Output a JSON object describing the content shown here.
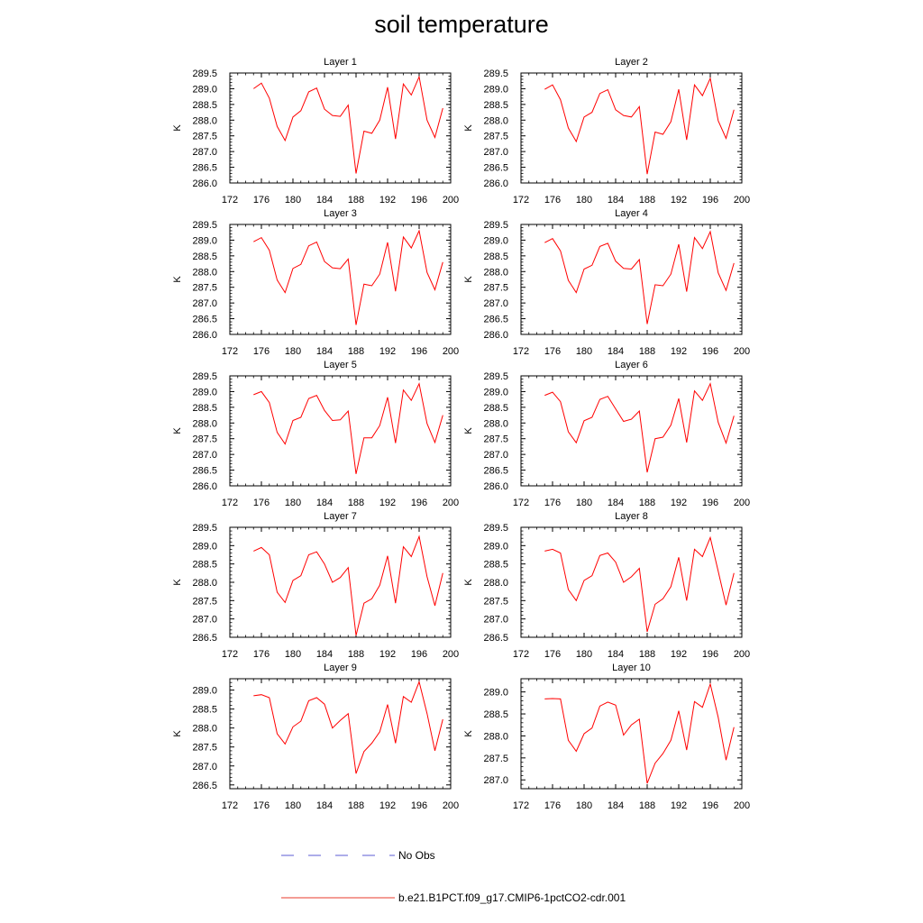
{
  "title": "soil temperature",
  "legend": {
    "items": [
      {
        "label": "No Obs",
        "color": "#5b5bd6",
        "style": "dashed"
      },
      {
        "label": "b.e21.B1PCT.f09_g17.CMIP6-1pctCO2-cdr.001",
        "color": "#e8382b",
        "style": "solid"
      }
    ]
  },
  "chart_data": [
    {
      "type": "line",
      "title": "Layer 1",
      "ylabel": "K",
      "xlim": [
        172,
        200
      ],
      "ylim": [
        286.0,
        289.5
      ],
      "yticks": [
        286.0,
        286.5,
        287.0,
        287.5,
        288.0,
        288.5,
        289.0,
        289.5
      ],
      "xticks": [
        172,
        176,
        180,
        184,
        188,
        192,
        196,
        200
      ],
      "line_color": "#ff0000",
      "x": [
        175,
        176,
        177,
        178,
        179,
        180,
        181,
        182,
        183,
        184,
        185,
        186,
        187,
        188,
        189,
        190,
        191,
        192,
        193,
        194,
        195,
        196,
        197,
        198,
        199
      ],
      "series": [
        {
          "values": [
            289.0,
            289.18,
            288.7,
            287.8,
            287.35,
            288.1,
            288.3,
            288.9,
            289.02,
            288.35,
            288.15,
            288.12,
            288.48,
            286.3,
            287.65,
            287.58,
            288.0,
            289.05,
            287.4,
            289.15,
            288.8,
            289.38,
            288.0,
            287.45,
            288.38
          ]
        }
      ]
    },
    {
      "type": "line",
      "title": "Layer 2",
      "ylabel": "K",
      "xlim": [
        172,
        200
      ],
      "ylim": [
        286.0,
        289.5
      ],
      "yticks": [
        286.0,
        286.5,
        287.0,
        287.5,
        288.0,
        288.5,
        289.0,
        289.5
      ],
      "xticks": [
        172,
        176,
        180,
        184,
        188,
        192,
        196,
        200
      ],
      "line_color": "#ff0000",
      "x": [
        175,
        176,
        177,
        178,
        179,
        180,
        181,
        182,
        183,
        184,
        185,
        186,
        187,
        188,
        189,
        190,
        191,
        192,
        193,
        194,
        195,
        196,
        197,
        198,
        199
      ],
      "series": [
        {
          "values": [
            288.98,
            289.12,
            288.65,
            287.75,
            287.32,
            288.1,
            288.25,
            288.85,
            288.97,
            288.33,
            288.15,
            288.1,
            288.43,
            286.28,
            287.62,
            287.55,
            287.95,
            288.98,
            287.37,
            289.12,
            288.78,
            289.33,
            287.98,
            287.42,
            288.33
          ]
        }
      ]
    },
    {
      "type": "line",
      "title": "Layer 3",
      "ylabel": "K",
      "xlim": [
        172,
        200
      ],
      "ylim": [
        286.0,
        289.5
      ],
      "yticks": [
        286.0,
        286.5,
        287.0,
        287.5,
        288.0,
        288.5,
        289.0,
        289.5
      ],
      "xticks": [
        172,
        176,
        180,
        184,
        188,
        192,
        196,
        200
      ],
      "line_color": "#ff0000",
      "x": [
        175,
        176,
        177,
        178,
        179,
        180,
        181,
        182,
        183,
        184,
        185,
        186,
        187,
        188,
        189,
        190,
        191,
        192,
        193,
        194,
        195,
        196,
        197,
        198,
        199
      ],
      "series": [
        {
          "values": [
            288.95,
            289.08,
            288.68,
            287.73,
            287.33,
            288.1,
            288.23,
            288.82,
            288.94,
            288.32,
            288.12,
            288.09,
            288.4,
            286.3,
            287.6,
            287.55,
            287.92,
            288.93,
            287.37,
            289.1,
            288.75,
            289.3,
            287.97,
            287.42,
            288.3
          ]
        }
      ]
    },
    {
      "type": "line",
      "title": "Layer 4",
      "ylabel": "K",
      "xlim": [
        172,
        200
      ],
      "ylim": [
        286.0,
        289.5
      ],
      "yticks": [
        286.0,
        286.5,
        287.0,
        287.5,
        288.0,
        288.5,
        289.0,
        289.5
      ],
      "xticks": [
        172,
        176,
        180,
        184,
        188,
        192,
        196,
        200
      ],
      "line_color": "#ff0000",
      "x": [
        175,
        176,
        177,
        178,
        179,
        180,
        181,
        182,
        183,
        184,
        185,
        186,
        187,
        188,
        189,
        190,
        191,
        192,
        193,
        194,
        195,
        196,
        197,
        198,
        199
      ],
      "series": [
        {
          "values": [
            288.92,
            289.05,
            288.66,
            287.72,
            287.33,
            288.08,
            288.2,
            288.8,
            288.9,
            288.33,
            288.1,
            288.08,
            288.38,
            286.33,
            287.58,
            287.55,
            287.92,
            288.87,
            287.36,
            289.08,
            288.73,
            289.27,
            287.96,
            287.4,
            288.27
          ]
        }
      ]
    },
    {
      "type": "line",
      "title": "Layer 5",
      "ylabel": "K",
      "xlim": [
        172,
        200
      ],
      "ylim": [
        286.0,
        289.5
      ],
      "yticks": [
        286.0,
        286.5,
        287.0,
        287.5,
        288.0,
        288.5,
        289.0,
        289.5
      ],
      "xticks": [
        172,
        176,
        180,
        184,
        188,
        192,
        196,
        200
      ],
      "line_color": "#ff0000",
      "x": [
        175,
        176,
        177,
        178,
        179,
        180,
        181,
        182,
        183,
        184,
        185,
        186,
        187,
        188,
        189,
        190,
        191,
        192,
        193,
        194,
        195,
        196,
        197,
        198,
        199
      ],
      "series": [
        {
          "values": [
            288.9,
            289.0,
            288.65,
            287.7,
            287.33,
            288.08,
            288.18,
            288.78,
            288.88,
            288.4,
            288.08,
            288.1,
            288.38,
            286.38,
            287.53,
            287.53,
            287.92,
            288.82,
            287.36,
            289.05,
            288.72,
            289.25,
            287.98,
            287.38,
            288.25
          ]
        }
      ]
    },
    {
      "type": "line",
      "title": "Layer 6",
      "ylabel": "K",
      "xlim": [
        172,
        200
      ],
      "ylim": [
        286.0,
        289.5
      ],
      "yticks": [
        286.0,
        286.5,
        287.0,
        287.5,
        288.0,
        288.5,
        289.0,
        289.5
      ],
      "xticks": [
        172,
        176,
        180,
        184,
        188,
        192,
        196,
        200
      ],
      "line_color": "#ff0000",
      "x": [
        175,
        176,
        177,
        178,
        179,
        180,
        181,
        182,
        183,
        184,
        185,
        186,
        187,
        188,
        189,
        190,
        191,
        192,
        193,
        194,
        195,
        196,
        197,
        198,
        199
      ],
      "series": [
        {
          "values": [
            288.88,
            288.98,
            288.68,
            287.72,
            287.37,
            288.07,
            288.18,
            288.75,
            288.85,
            288.45,
            288.05,
            288.12,
            288.38,
            286.43,
            287.5,
            287.55,
            287.93,
            288.78,
            287.38,
            289.02,
            288.72,
            289.25,
            288.02,
            287.36,
            288.23
          ]
        }
      ]
    },
    {
      "type": "line",
      "title": "Layer 7",
      "ylabel": "K",
      "xlim": [
        172,
        200
      ],
      "ylim": [
        286.5,
        289.5
      ],
      "yticks": [
        286.5,
        287.0,
        287.5,
        288.0,
        288.5,
        289.0,
        289.5
      ],
      "xticks": [
        172,
        176,
        180,
        184,
        188,
        192,
        196,
        200
      ],
      "line_color": "#ff0000",
      "x": [
        175,
        176,
        177,
        178,
        179,
        180,
        181,
        182,
        183,
        184,
        185,
        186,
        187,
        188,
        189,
        190,
        191,
        192,
        193,
        194,
        195,
        196,
        197,
        198,
        199
      ],
      "series": [
        {
          "values": [
            288.85,
            288.95,
            288.75,
            287.73,
            287.45,
            288.05,
            288.18,
            288.75,
            288.83,
            288.5,
            288.0,
            288.13,
            288.4,
            286.55,
            287.43,
            287.55,
            287.92,
            288.72,
            287.43,
            288.97,
            288.7,
            289.25,
            288.15,
            287.36,
            288.25
          ]
        }
      ]
    },
    {
      "type": "line",
      "title": "Layer 8",
      "ylabel": "K",
      "xlim": [
        172,
        200
      ],
      "ylim": [
        286.5,
        289.5
      ],
      "yticks": [
        286.5,
        287.0,
        287.5,
        288.0,
        288.5,
        289.0,
        289.5
      ],
      "xticks": [
        172,
        176,
        180,
        184,
        188,
        192,
        196,
        200
      ],
      "line_color": "#ff0000",
      "x": [
        175,
        176,
        177,
        178,
        179,
        180,
        181,
        182,
        183,
        184,
        185,
        186,
        187,
        188,
        189,
        190,
        191,
        192,
        193,
        194,
        195,
        196,
        197,
        198,
        199
      ],
      "series": [
        {
          "values": [
            288.85,
            288.9,
            288.8,
            287.8,
            287.5,
            288.05,
            288.18,
            288.73,
            288.8,
            288.55,
            288.0,
            288.15,
            288.38,
            286.65,
            287.4,
            287.55,
            287.88,
            288.68,
            287.5,
            288.9,
            288.7,
            289.22,
            288.3,
            287.38,
            288.25
          ]
        }
      ]
    },
    {
      "type": "line",
      "title": "Layer 9",
      "ylabel": "K",
      "xlim": [
        172,
        200
      ],
      "ylim": [
        286.4,
        289.3
      ],
      "yticks": [
        286.5,
        287.0,
        287.5,
        288.0,
        288.5,
        289.0
      ],
      "xticks": [
        172,
        176,
        180,
        184,
        188,
        192,
        196,
        200
      ],
      "line_color": "#ff0000",
      "x": [
        175,
        176,
        177,
        178,
        179,
        180,
        181,
        182,
        183,
        184,
        185,
        186,
        187,
        188,
        189,
        190,
        191,
        192,
        193,
        194,
        195,
        196,
        197,
        198,
        199
      ],
      "series": [
        {
          "values": [
            288.85,
            288.88,
            288.8,
            287.85,
            287.58,
            288.03,
            288.18,
            288.72,
            288.8,
            288.63,
            288.0,
            288.2,
            288.38,
            286.8,
            287.38,
            287.6,
            287.9,
            288.62,
            287.6,
            288.83,
            288.68,
            289.22,
            288.38,
            287.4,
            288.23
          ]
        }
      ]
    },
    {
      "type": "line",
      "title": "Layer 10",
      "ylabel": "K",
      "xlim": [
        172,
        200
      ],
      "ylim": [
        286.8,
        289.3
      ],
      "yticks": [
        287.0,
        287.5,
        288.0,
        288.5,
        289.0
      ],
      "xticks": [
        172,
        176,
        180,
        184,
        188,
        192,
        196,
        200
      ],
      "line_color": "#ff0000",
      "x": [
        175,
        176,
        177,
        178,
        179,
        180,
        181,
        182,
        183,
        184,
        185,
        186,
        187,
        188,
        189,
        190,
        191,
        192,
        193,
        194,
        195,
        196,
        197,
        198,
        199
      ],
      "series": [
        {
          "values": [
            288.84,
            288.85,
            288.84,
            287.9,
            287.65,
            288.05,
            288.18,
            288.68,
            288.77,
            288.7,
            288.02,
            288.25,
            288.38,
            286.92,
            287.38,
            287.6,
            287.9,
            288.57,
            287.68,
            288.78,
            288.65,
            289.18,
            288.42,
            287.45,
            288.2
          ]
        }
      ]
    }
  ]
}
